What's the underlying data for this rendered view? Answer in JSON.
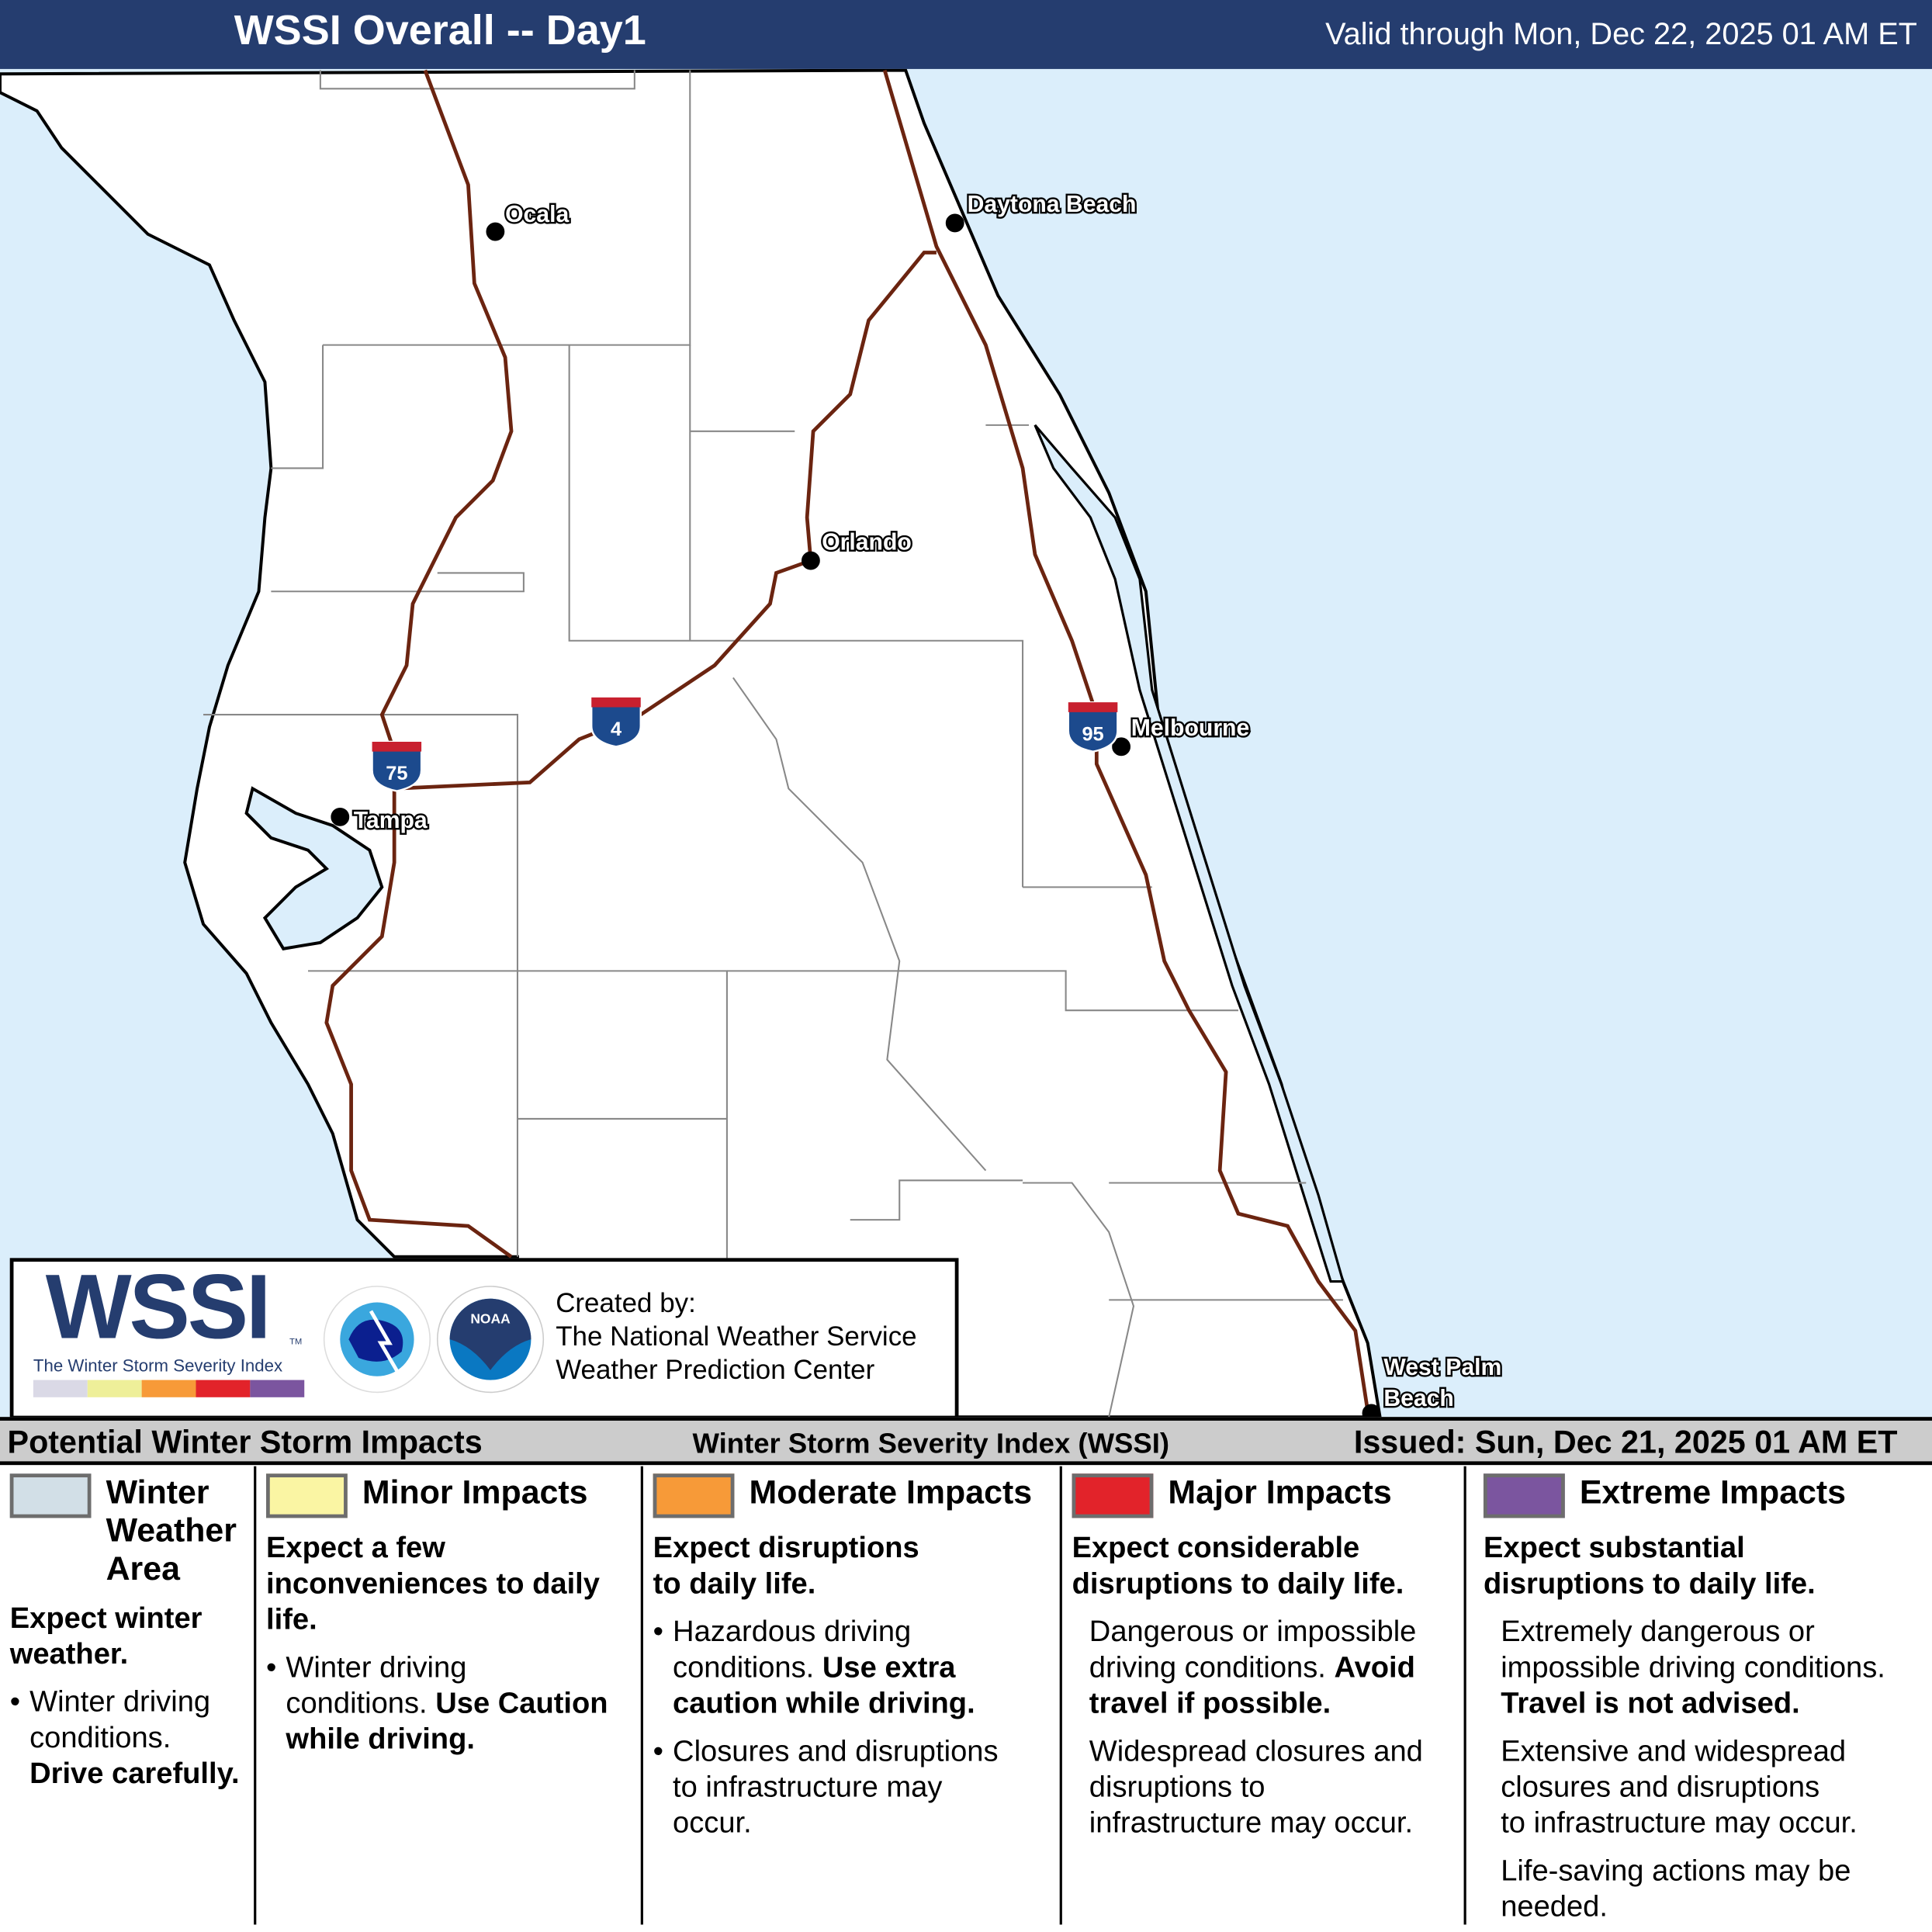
{
  "header": {
    "title": "WSSI Overall -- Day1",
    "valid": "Valid through Mon, Dec 22, 2025 01 AM ET"
  },
  "map": {
    "land_color": "#ffffff",
    "water_color": "#dbeefb",
    "highway_color": "#6b2410",
    "cities": [
      {
        "name": "Ocala"
      },
      {
        "name": "Daytona Beach"
      },
      {
        "name": "Orlando"
      },
      {
        "name": "Melbourne"
      },
      {
        "name": "Tampa"
      },
      {
        "name": "West Palm",
        "name2": "Beach"
      }
    ],
    "shields": [
      {
        "label": "75"
      },
      {
        "label": "4"
      },
      {
        "label": "95"
      }
    ]
  },
  "logo": {
    "wssi": "WSSI",
    "tm": "TM",
    "subtitle": "The Winter Storm Severity Index",
    "bar_colors": [
      "#dad9e6",
      "#eeef99",
      "#f79a38",
      "#e2232a",
      "#7b559f"
    ],
    "nws_text": "NATIONAL WEATHER SERVICE",
    "noaa": "NOAA",
    "created_by": "Created by:",
    "org1": "The National Weather Service",
    "org2": "Weather Prediction Center"
  },
  "strip": {
    "left": "Potential Winter Storm Impacts",
    "center": "Winter Storm Severity Index (WSSI)",
    "right": "Issued: Sun, Dec 21, 2025 01 AM ET"
  },
  "legend": [
    {
      "title": "Winter Weather Area",
      "t1": "Winter",
      "t2": "Weather",
      "t3": "Area",
      "color": "#d2dfe7",
      "head": "Expect winter weather.",
      "h1": "Expect winter",
      "h2": "weather.",
      "bullet": "Winter driving conditions.",
      "b1": "Winter driving",
      "b2": "conditions.",
      "bold": "Drive carefully."
    },
    {
      "title": "Minor Impacts",
      "color": "#faf5a3",
      "h1": "Expect a few",
      "h2": "inconveniences to daily",
      "h3": "life.",
      "b1": "Winter driving",
      "b2": "conditions.",
      "bold1": "Use Caution",
      "bold2": "while driving."
    },
    {
      "title": "Moderate Impacts",
      "color": "#f79a38",
      "h1": "Expect disruptions",
      "h2": "to daily life.",
      "b1": "Hazardous driving",
      "b2": "conditions.",
      "bold1": "Use extra",
      "bold2": "caution while driving.",
      "c1": "Closures and disruptions",
      "c2": "to infrastructure may",
      "c3": "occur."
    },
    {
      "title": "Major Impacts",
      "color": "#e2232a",
      "h1": "Expect considerable",
      "h2": "disruptions to daily life.",
      "b1": "Dangerous or impossible",
      "b2": "driving conditions.",
      "bold1": "Avoid",
      "bold2": "travel if possible.",
      "c1": "Widespread closures and",
      "c2": "disruptions to",
      "c3": "infrastructure may occur."
    },
    {
      "title": "Extreme Impacts",
      "color": "#7b559f",
      "h1": "Expect substantial",
      "h2": "disruptions to daily life.",
      "b1": "Extremely dangerous or",
      "b2": "impossible driving conditions.",
      "bold1": "Travel is not advised.",
      "c1": "Extensive and widespread",
      "c2": "closures and disruptions",
      "c3": "to infrastructure may occur.",
      "d1": "Life-saving actions may be",
      "d2": "needed."
    }
  ]
}
